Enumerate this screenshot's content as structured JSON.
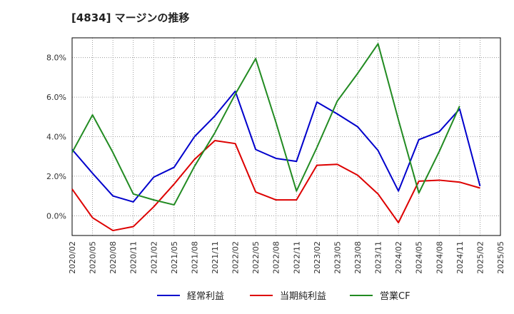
{
  "chart_data": {
    "type": "line",
    "title": "[4834]  マージンの推移",
    "categories": [
      "2020/02",
      "2020/05",
      "2020/08",
      "2020/11",
      "2021/02",
      "2021/05",
      "2021/08",
      "2021/11",
      "2022/02",
      "2022/05",
      "2022/08",
      "2022/11",
      "2023/02",
      "2023/05",
      "2023/08",
      "2023/11",
      "2024/02",
      "2024/05",
      "2024/08",
      "2024/11",
      "2025/02",
      "2025/05"
    ],
    "ylim": [
      -1.0,
      9.0
    ],
    "yticks": [
      0,
      2,
      4,
      6,
      8
    ],
    "ytick_labels": [
      "0.0%",
      "2.0%",
      "4.0%",
      "6.0%",
      "8.0%"
    ],
    "grid": true,
    "legend_position": "bottom",
    "series": [
      {
        "name": "経常利益",
        "color": "#0000cc",
        "values": [
          3.35,
          2.15,
          1.0,
          0.7,
          1.95,
          2.45,
          4.0,
          5.05,
          6.3,
          3.35,
          2.9,
          2.75,
          5.75,
          5.15,
          4.5,
          3.3,
          1.25,
          3.85,
          4.25,
          5.4,
          1.5,
          null
        ]
      },
      {
        "name": "当期純利益",
        "color": "#dd0000",
        "values": [
          1.35,
          -0.1,
          -0.75,
          -0.55,
          0.45,
          1.6,
          2.85,
          3.8,
          3.65,
          1.2,
          0.8,
          0.8,
          2.55,
          2.6,
          2.05,
          1.1,
          -0.35,
          1.75,
          1.8,
          1.7,
          1.4,
          null
        ]
      },
      {
        "name": "営業CF",
        "color": "#228b22",
        "values": [
          3.2,
          5.1,
          3.2,
          1.1,
          0.8,
          0.55,
          2.5,
          4.2,
          6.15,
          7.95,
          4.7,
          1.25,
          3.45,
          5.8,
          7.2,
          8.7,
          4.85,
          1.15,
          3.25,
          5.55,
          null,
          null
        ]
      }
    ]
  }
}
